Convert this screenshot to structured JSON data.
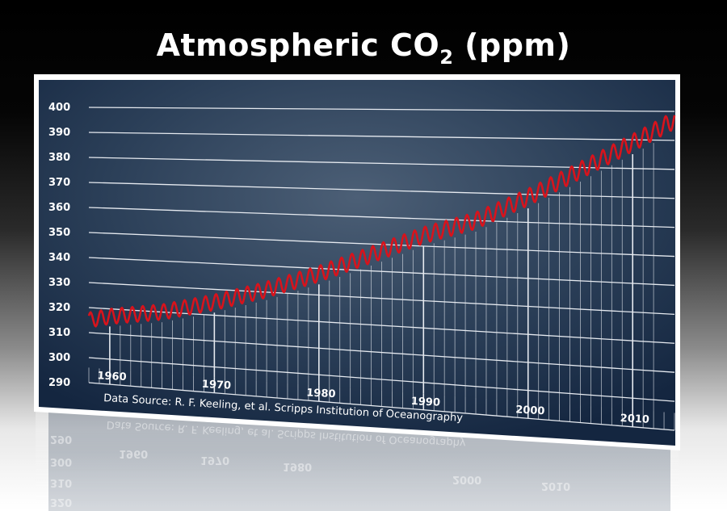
{
  "title": {
    "main": "Atmospheric CO",
    "subscript": "2",
    "tail": " (ppm)"
  },
  "source": "Data Source: R. F. Keeling, et al. Scripps Institution of Oceanography",
  "colors": {
    "panel_center": "#4c5f76",
    "panel_edge": "#142640",
    "frame": "#ffffff",
    "series": "#d8131c",
    "grid": "#e6eaf0"
  },
  "chart_data": {
    "type": "line",
    "title": "Atmospheric CO2 (ppm)",
    "xlabel": "",
    "ylabel": "",
    "xlim": [
      1958,
      2014
    ],
    "ylim": [
      290,
      400
    ],
    "grid": true,
    "y_ticks": [
      290,
      300,
      310,
      320,
      330,
      340,
      350,
      360,
      370,
      380,
      390,
      400
    ],
    "x_ticks": [
      1960,
      1970,
      1980,
      1990,
      2000,
      2010
    ],
    "series": [
      {
        "name": "",
        "note": "monthly values with seasonal cycle of about 6 ppm peak-to-trough",
        "seasonal_amplitude": 3,
        "x": [
          1958,
          1960,
          1965,
          1970,
          1975,
          1980,
          1985,
          1990,
          1995,
          2000,
          2005,
          2010,
          2014
        ],
        "values": [
          315,
          317,
          320,
          325,
          331,
          338,
          346,
          354,
          360,
          369,
          379,
          389,
          397
        ]
      }
    ]
  }
}
